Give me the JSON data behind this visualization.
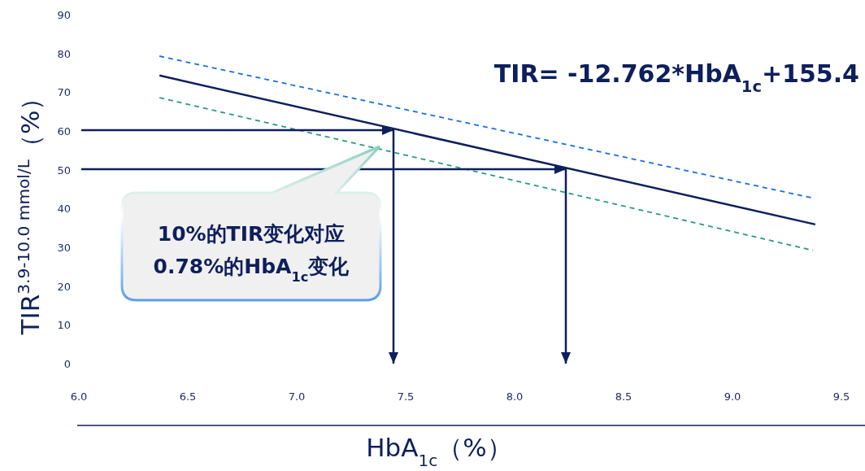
{
  "chart_data": {
    "type": "line",
    "xlabel": "HbA$_{1c}$（%）",
    "ylabel": "TIR$^{3.9-10.0 mmol/L}$（%）",
    "xlim": [
      6.0,
      9.5
    ],
    "ylim": [
      0,
      90
    ],
    "xticks": [
      {
        "value": 6,
        "label": "6.0"
      },
      6.5,
      {
        "value": 7,
        "label": "7.0"
      },
      7.5,
      {
        "value": 8,
        "label": "8.0"
      },
      8.5,
      {
        "value": 9,
        "label": "9.0"
      },
      9.5
    ],
    "yticks": [
      0,
      10,
      20,
      30,
      40,
      50,
      60,
      70,
      80,
      90
    ],
    "series": [
      {
        "color": "#1a6fe0",
        "line_style": "dashed",
        "x": [
          6.37,
          9.36
        ],
        "values": [
          79.3,
          42.8
        ]
      },
      {
        "color": "#0d1f5c",
        "line_style": "solid",
        "x": [
          6.37,
          9.38
        ],
        "values": [
          74.3,
          35.9
        ]
      },
      {
        "color": "#2a9a84",
        "line_style": "dashed",
        "x": [
          6.37,
          9.37
        ],
        "values": [
          68.6,
          29.2
        ]
      }
    ],
    "annotations": [
      "TIR= -12.762*HbA$_{1c}$+155.4",
      "10%的TIR变化对应\n0.78%的HbA$_{1c}$变化"
    ]
  }
}
